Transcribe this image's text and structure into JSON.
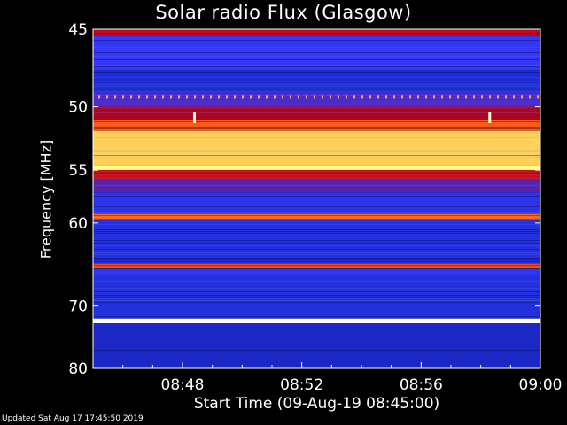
{
  "header": {
    "title": "Solar radio Flux (Glasgow)"
  },
  "footer": {
    "updated": "Updated Sat Aug 17 17:45:50 2019"
  },
  "chart_data": {
    "type": "heatmap",
    "title": "Solar radio Flux (Glasgow)",
    "xlabel": "Start Time (09-Aug-19 08:45:00)",
    "ylabel": "Frequency [MHz]",
    "x_ticks": [
      {
        "label": "08:48",
        "minutes": 3
      },
      {
        "label": "08:52",
        "minutes": 7
      },
      {
        "label": "08:56",
        "minutes": 11
      },
      {
        "label": "09:00",
        "minutes": 15
      }
    ],
    "y_ticks": [
      45,
      50,
      55,
      60,
      70,
      80
    ],
    "xlim_minutes": [
      0,
      15
    ],
    "ylim": [
      45,
      80
    ],
    "y_scale": "reciprocal",
    "colormap": [
      "#0a0a7a",
      "#1f2fd8",
      "#3a3aff",
      "#8a0030",
      "#e01010",
      "#ff6a1a",
      "#ffb040",
      "#ffff80",
      "#ffffff"
    ],
    "bands": [
      {
        "f_low": 45.0,
        "f_high": 45.4,
        "level": 0.45
      },
      {
        "f_low": 45.4,
        "f_high": 47.5,
        "level": 0.22
      },
      {
        "f_low": 47.5,
        "f_high": 49.0,
        "level": 0.12
      },
      {
        "f_low": 49.0,
        "f_high": 50.0,
        "level": 0.28
      },
      {
        "f_low": 50.0,
        "f_high": 51.0,
        "level": 0.42
      },
      {
        "f_low": 51.0,
        "f_high": 51.8,
        "level": 0.6
      },
      {
        "f_low": 51.8,
        "f_high": 54.6,
        "level": 0.8
      },
      {
        "f_low": 54.6,
        "f_high": 55.0,
        "level": 0.88
      },
      {
        "f_low": 55.0,
        "f_high": 55.8,
        "level": 0.48
      },
      {
        "f_low": 55.8,
        "f_high": 57.0,
        "level": 0.3
      },
      {
        "f_low": 57.0,
        "f_high": 59.0,
        "level": 0.18
      },
      {
        "f_low": 59.0,
        "f_high": 59.6,
        "level": 0.62
      },
      {
        "f_low": 59.6,
        "f_high": 64.5,
        "level": 0.15
      },
      {
        "f_low": 64.5,
        "f_high": 65.1,
        "level": 0.58
      },
      {
        "f_low": 65.1,
        "f_high": 66.0,
        "level": 0.2
      },
      {
        "f_low": 66.0,
        "f_high": 71.8,
        "level": 0.14
      },
      {
        "f_low": 71.8,
        "f_high": 72.5,
        "level": 1.0
      },
      {
        "f_low": 72.5,
        "f_high": 80.0,
        "level": 0.1
      }
    ],
    "bursts": [
      {
        "minute": 3.4,
        "f_low": 50.4,
        "f_high": 51.2,
        "level": 0.95
      },
      {
        "minute": 13.3,
        "f_low": 50.4,
        "f_high": 51.2,
        "level": 0.95
      }
    ],
    "dotted_line": {
      "freq": 49.3,
      "level": 0.75
    }
  }
}
